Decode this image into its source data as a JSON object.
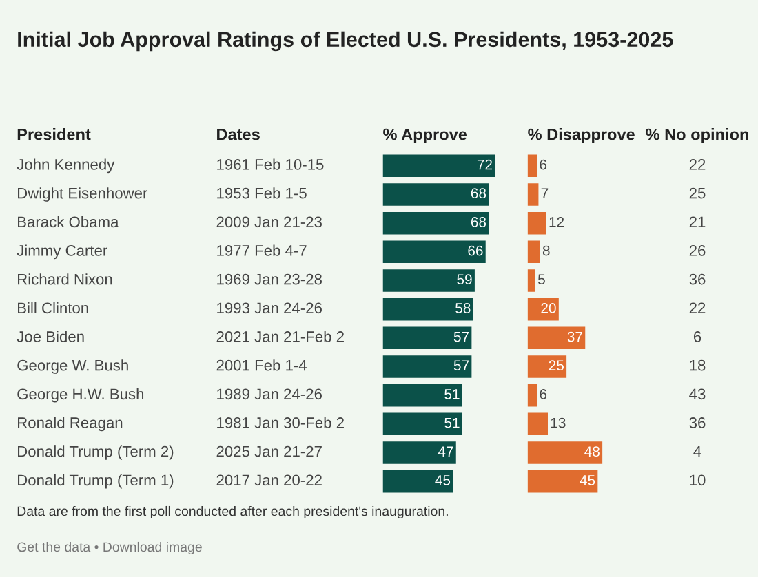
{
  "chart_data": [
    {
      "type": "other",
      "title": "Initial Job Approval Ratings of Elected U.S. Presidents, 1953-2025",
      "annotations": [
        "Data are from the first poll conducted after each president's inauguration.",
        "Get the data • Download image"
      ]
    },
    {
      "type": "other",
      "title": "President",
      "annotations": [
        "John Kennedy",
        "Dwight Eisenhower",
        "Barack Obama",
        "Jimmy Carter",
        "Richard Nixon",
        "Bill Clinton",
        "Joe Biden",
        "George W. Bush",
        "George H.W. Bush",
        "Ronald Reagan",
        "Donald Trump (Term 2)",
        "Donald Trump (Term 1)"
      ]
    },
    {
      "type": "other",
      "title": "Dates",
      "annotations": [
        "1961 Feb 10-15",
        "1953 Feb 1-5",
        "2009 Jan 21-23",
        "1977 Feb 4-7",
        "1969 Jan 23-28",
        "1993 Jan 24-26",
        "2021 Jan 21-Feb 2",
        "2001 Feb 1-4",
        "1989 Jan 24-26",
        "1981 Jan 30-Feb 2",
        "2025 Jan 21-27",
        "2017 Jan 20-22"
      ]
    },
    {
      "type": "bar",
      "orientation": "horizontal",
      "title": "% Approve",
      "categories": [
        null,
        null,
        null,
        null,
        null,
        null,
        null,
        null,
        null,
        null,
        null,
        null
      ],
      "values": [
        72,
        68,
        68,
        66,
        59,
        58,
        57,
        57,
        51,
        51,
        47,
        45
      ],
      "color": "#0b5149",
      "data_labels": true
    },
    {
      "type": "bar",
      "orientation": "horizontal",
      "title": "% Disapprove",
      "categories": [
        null,
        null,
        null,
        null,
        null,
        null,
        null,
        null,
        null,
        null,
        null,
        null
      ],
      "values": [
        6,
        7,
        12,
        8,
        5,
        20,
        37,
        25,
        6,
        13,
        48,
        45
      ],
      "color": "#e06c2f",
      "data_labels": true
    },
    {
      "type": "other",
      "title": "% No opinion",
      "annotations": [
        "22",
        "25",
        "21",
        "26",
        "36",
        "22",
        "6",
        "18",
        "43",
        "36",
        "4",
        "10"
      ]
    }
  ]
}
